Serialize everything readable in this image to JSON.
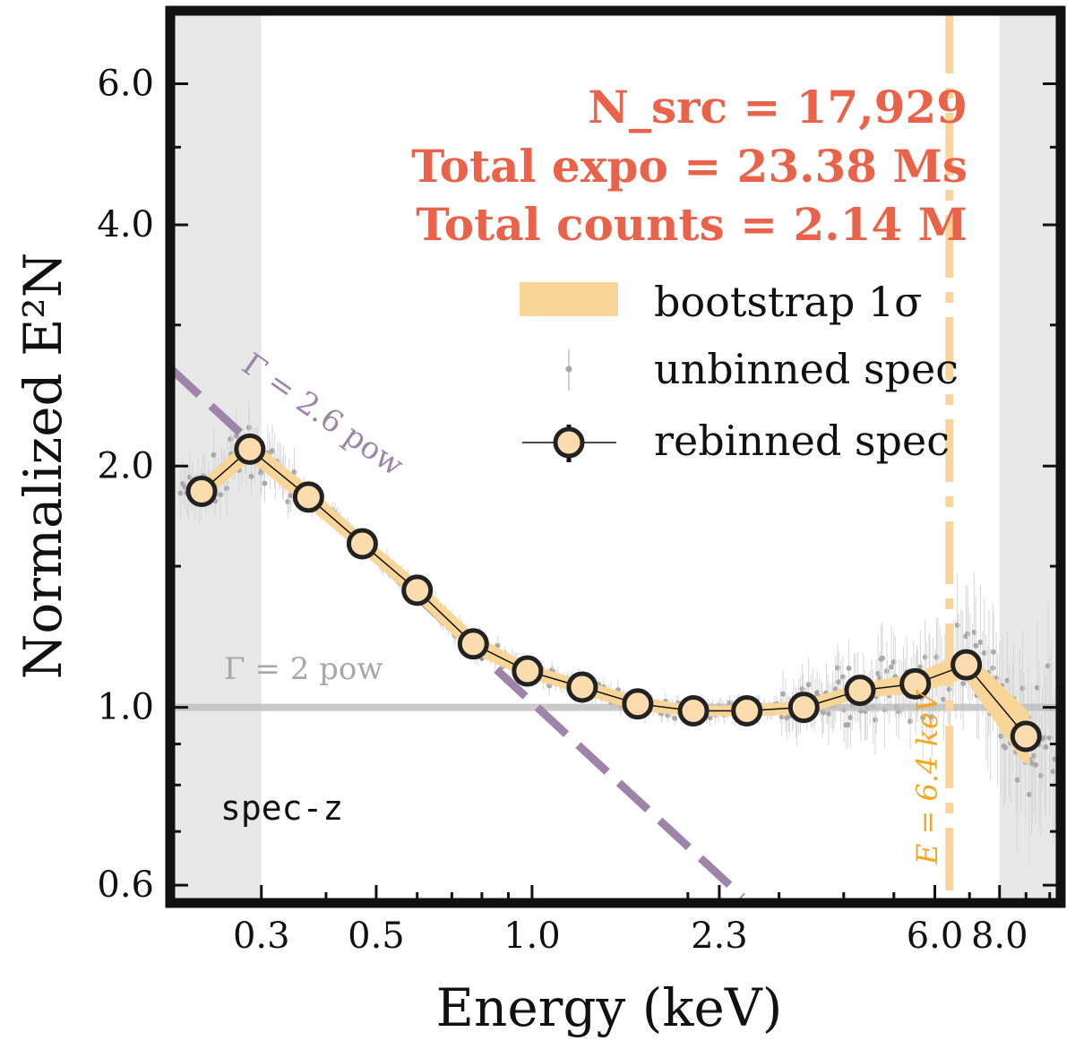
{
  "chart_data": {
    "type": "line",
    "xlabel": "Energy (keV)",
    "ylabel": "Normalized E²N",
    "x_scale": "log",
    "y_scale": "log",
    "xlim": [
      0.2,
      10.5
    ],
    "ylim": [
      0.57,
      7.4
    ],
    "x_ticks": [
      0.3,
      0.5,
      1.0,
      2.3,
      6.0,
      8.0
    ],
    "x_tick_labels": [
      "0.3",
      "0.5",
      "1.0",
      "2.3",
      "6.0",
      "8.0"
    ],
    "y_ticks": [
      0.6,
      1.0,
      2.0,
      4.0,
      6.0
    ],
    "y_tick_labels": [
      "0.6",
      "1.0",
      "2.0",
      "4.0",
      "6.0"
    ],
    "shaded_regions": [
      [
        0.2,
        0.3
      ],
      [
        8.0,
        10.5
      ]
    ],
    "stats": {
      "nsrc": "N_src = 17,929",
      "expo": "Total expo = 23.38 Ms",
      "counts": "Total counts = 2.14 M"
    },
    "legend": {
      "placement": "right",
      "band_label": "bootstrap 1σ",
      "unbinned_label": "unbinned spec",
      "rebinned_label": "rebinned spec"
    },
    "annotations": {
      "gamma26": "Γ = 2.6 pow",
      "gamma2": "Γ = 2 pow",
      "line_energy": "E = 6.4 keV",
      "sample": "spec-z"
    },
    "reference_lines": {
      "gamma2_level": 1.0,
      "gamma26": {
        "x": [
          0.2,
          2.55
        ],
        "y": [
          2.65,
          0.58
        ]
      },
      "fe_line_energy": 6.4
    },
    "series": [
      {
        "name": "rebinned spec",
        "x": [
          0.23,
          0.285,
          0.37,
          0.47,
          0.6,
          0.77,
          0.98,
          1.25,
          1.6,
          2.05,
          2.6,
          3.35,
          4.3,
          5.5,
          6.9,
          9.0
        ],
        "y": [
          1.86,
          2.1,
          1.83,
          1.6,
          1.4,
          1.2,
          1.11,
          1.06,
          1.01,
          0.99,
          0.99,
          1.0,
          1.05,
          1.07,
          1.13,
          0.92
        ],
        "band_lo": [
          1.83,
          2.06,
          1.8,
          1.58,
          1.38,
          1.18,
          1.1,
          1.05,
          1.0,
          0.985,
          0.985,
          0.99,
          1.04,
          1.05,
          1.1,
          0.86
        ],
        "band_hi": [
          1.89,
          2.14,
          1.86,
          1.62,
          1.42,
          1.22,
          1.12,
          1.07,
          1.02,
          0.995,
          0.995,
          1.01,
          1.06,
          1.09,
          1.16,
          0.98
        ]
      }
    ],
    "colors": {
      "stats_text": "#e8634a",
      "band": "#f9d597",
      "marker_fill": "#fbdcae",
      "gamma26_line": "#9d84a8",
      "gamma2_line": "#bdbdbd",
      "fe_line": "#f9d597",
      "fe_label": "#f5a623",
      "unbinned": "#a9a9a9",
      "shade": "#e8e8e8"
    }
  }
}
